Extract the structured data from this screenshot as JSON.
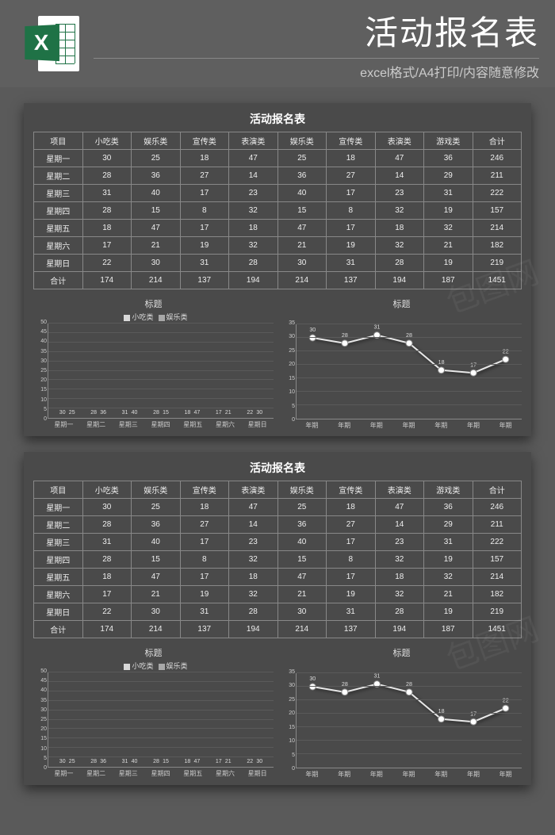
{
  "header": {
    "title": "活动报名表",
    "subtitle": "excel格式/A4打印/内容随意修改",
    "icon_letter": "X",
    "icon_badge_color": "#1f7246",
    "icon_page_color": "#ffffff"
  },
  "page_bg": "#5a5a5a",
  "panel_bg": "#4a4a4a",
  "border_color": "#888888",
  "text_color": "#eeeeee",
  "table": {
    "title": "活动报名表",
    "columns": [
      "项目",
      "小吃类",
      "娱乐类",
      "宣传类",
      "表演类",
      "娱乐类",
      "宣传类",
      "表演类",
      "游戏类",
      "合计"
    ],
    "rows": [
      [
        "星期一",
        "30",
        "25",
        "18",
        "47",
        "25",
        "18",
        "47",
        "36",
        "246"
      ],
      [
        "星期二",
        "28",
        "36",
        "27",
        "14",
        "36",
        "27",
        "14",
        "29",
        "211"
      ],
      [
        "星期三",
        "31",
        "40",
        "17",
        "23",
        "40",
        "17",
        "23",
        "31",
        "222"
      ],
      [
        "星期四",
        "28",
        "15",
        "8",
        "32",
        "15",
        "8",
        "32",
        "19",
        "157"
      ],
      [
        "星期五",
        "18",
        "47",
        "17",
        "18",
        "47",
        "17",
        "18",
        "32",
        "214"
      ],
      [
        "星期六",
        "17",
        "21",
        "19",
        "32",
        "21",
        "19",
        "32",
        "21",
        "182"
      ],
      [
        "星期日",
        "22",
        "30",
        "31",
        "28",
        "30",
        "31",
        "28",
        "19",
        "219"
      ],
      [
        "合计",
        "174",
        "214",
        "137",
        "194",
        "214",
        "137",
        "194",
        "187",
        "1451"
      ]
    ],
    "cell_fontsize": 10,
    "title_fontsize": 14
  },
  "bar_chart": {
    "title": "标题",
    "legend": [
      "小吃类",
      "娱乐类"
    ],
    "categories": [
      "星期一",
      "星期二",
      "星期三",
      "星期四",
      "星期五",
      "星期六",
      "星期日"
    ],
    "series1": [
      30,
      28,
      31,
      28,
      18,
      17,
      22
    ],
    "series2": [
      25,
      36,
      40,
      15,
      47,
      21,
      30
    ],
    "series1_color": "#d8d8d8",
    "series2_color": "#a8a8a8",
    "ylim": [
      0,
      50
    ],
    "ytick_step": 5,
    "grid_color": "#5a5a5a",
    "label_fontsize": 7
  },
  "line_chart": {
    "title": "标题",
    "categories": [
      "年期",
      "年期",
      "年期",
      "年期",
      "年期",
      "年期",
      "年期"
    ],
    "values": [
      30,
      28,
      31,
      28,
      18,
      17,
      22
    ],
    "ylim": [
      0,
      35
    ],
    "ytick_step": 5,
    "line_color": "#e8e8e8",
    "marker_fill": "#ffffff",
    "marker_stroke": "#888888",
    "marker_radius": 4,
    "line_width": 2,
    "grid_color": "#5a5a5a",
    "label_fontsize": 7
  },
  "watermarks": [
    "包图网",
    "包图网"
  ]
}
